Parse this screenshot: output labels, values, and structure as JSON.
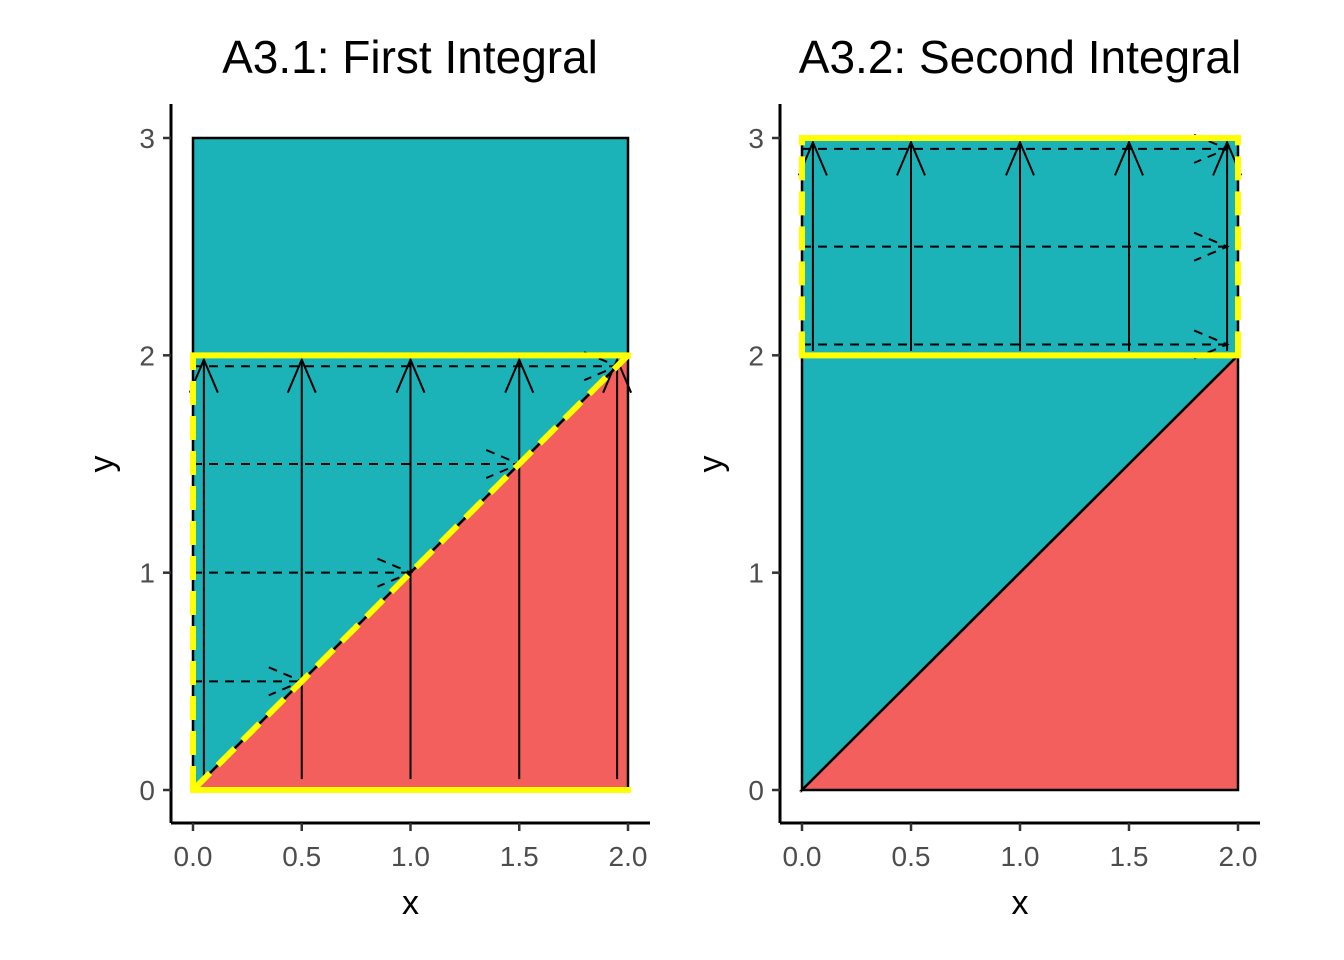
{
  "chart_data": [
    {
      "type": "area",
      "title": "A3.1: First Integral",
      "xlabel": "x",
      "ylabel": "y",
      "xlim": [
        0,
        2
      ],
      "ylim": [
        0,
        3
      ],
      "x_ticks": [
        0.0,
        0.5,
        1.0,
        1.5,
        2.0
      ],
      "x_tick_labels": [
        "0.0",
        "0.5",
        "1.0",
        "1.5",
        "2.0"
      ],
      "y_ticks": [
        0,
        1,
        2,
        3
      ],
      "y_tick_labels": [
        "0",
        "1",
        "2",
        "3"
      ],
      "grid": false,
      "colors": {
        "teal": "#1bb3b8",
        "red": "#f25f5c",
        "highlight": "#ffff00"
      },
      "regions": [
        {
          "name": "teal-top",
          "color": "#1bb3b8",
          "points": [
            [
              0,
              2
            ],
            [
              0,
              3
            ],
            [
              2,
              3
            ],
            [
              2,
              2
            ]
          ]
        },
        {
          "name": "teal-triangle",
          "color": "#1bb3b8",
          "points": [
            [
              0,
              0
            ],
            [
              0,
              2
            ],
            [
              2,
              2
            ]
          ]
        },
        {
          "name": "red-triangle",
          "color": "#f25f5c",
          "points": [
            [
              0,
              0
            ],
            [
              2,
              0
            ],
            [
              2,
              2
            ]
          ]
        }
      ],
      "diagonal": [
        [
          0,
          0
        ],
        [
          2,
          2
        ]
      ],
      "vertical_arrows": [
        {
          "x": 0.05,
          "y0": 0.05,
          "y1": 1.98
        },
        {
          "x": 0.5,
          "y0": 0.05,
          "y1": 1.98
        },
        {
          "x": 1.0,
          "y0": 0.05,
          "y1": 1.98
        },
        {
          "x": 1.5,
          "y0": 0.05,
          "y1": 1.98
        },
        {
          "x": 1.95,
          "y0": 0.05,
          "y1": 1.98
        }
      ],
      "horizontal_arrows": [
        {
          "y": 0.5,
          "x0": 0.0,
          "x1": 0.5
        },
        {
          "y": 1.0,
          "x0": 0.0,
          "x1": 1.0
        },
        {
          "y": 1.5,
          "x0": 0.0,
          "x1": 1.5
        },
        {
          "y": 1.95,
          "x0": 0.0,
          "x1": 1.95
        }
      ],
      "highlight": {
        "dashed": [
          [
            [
              0,
              0
            ],
            [
              0,
              2
            ]
          ],
          [
            [
              0,
              0
            ],
            [
              2,
              2
            ]
          ]
        ],
        "solid": [
          [
            [
              0,
              2
            ],
            [
              2,
              2
            ]
          ],
          [
            [
              0,
              0
            ],
            [
              2,
              0
            ]
          ]
        ]
      }
    },
    {
      "type": "area",
      "title": "A3.2: Second Integral",
      "xlabel": "x",
      "ylabel": "y",
      "xlim": [
        0,
        2
      ],
      "ylim": [
        0,
        3
      ],
      "x_ticks": [
        0.0,
        0.5,
        1.0,
        1.5,
        2.0
      ],
      "x_tick_labels": [
        "0.0",
        "0.5",
        "1.0",
        "1.5",
        "2.0"
      ],
      "y_ticks": [
        0,
        1,
        2,
        3
      ],
      "y_tick_labels": [
        "0",
        "1",
        "2",
        "3"
      ],
      "grid": false,
      "colors": {
        "teal": "#1bb3b8",
        "red": "#f25f5c",
        "highlight": "#ffff00"
      },
      "regions": [
        {
          "name": "teal-top",
          "color": "#1bb3b8",
          "points": [
            [
              0,
              2
            ],
            [
              0,
              3
            ],
            [
              2,
              3
            ],
            [
              2,
              2
            ]
          ]
        },
        {
          "name": "teal-triangle",
          "color": "#1bb3b8",
          "points": [
            [
              0,
              0
            ],
            [
              0,
              2
            ],
            [
              2,
              2
            ]
          ]
        },
        {
          "name": "red-triangle",
          "color": "#f25f5c",
          "points": [
            [
              0,
              0
            ],
            [
              2,
              0
            ],
            [
              2,
              2
            ]
          ]
        }
      ],
      "diagonal": [
        [
          0,
          0
        ],
        [
          2,
          2
        ]
      ],
      "vertical_arrows": [
        {
          "x": 0.05,
          "y0": 2.02,
          "y1": 2.98
        },
        {
          "x": 0.5,
          "y0": 2.02,
          "y1": 2.98
        },
        {
          "x": 1.0,
          "y0": 2.02,
          "y1": 2.98
        },
        {
          "x": 1.5,
          "y0": 2.02,
          "y1": 2.98
        },
        {
          "x": 1.95,
          "y0": 2.02,
          "y1": 2.98
        }
      ],
      "horizontal_arrows": [
        {
          "y": 2.05,
          "x0": 0.0,
          "x1": 1.95
        },
        {
          "y": 2.5,
          "x0": 0.0,
          "x1": 1.95
        },
        {
          "y": 2.95,
          "x0": 0.0,
          "x1": 1.95
        }
      ],
      "highlight": {
        "dashed": [
          [
            [
              0,
              2
            ],
            [
              0,
              3
            ]
          ],
          [
            [
              2,
              2
            ],
            [
              2,
              3
            ]
          ]
        ],
        "solid": [
          [
            [
              0,
              3
            ],
            [
              2,
              3
            ]
          ],
          [
            [
              0,
              2
            ],
            [
              2,
              2
            ]
          ]
        ]
      }
    }
  ]
}
